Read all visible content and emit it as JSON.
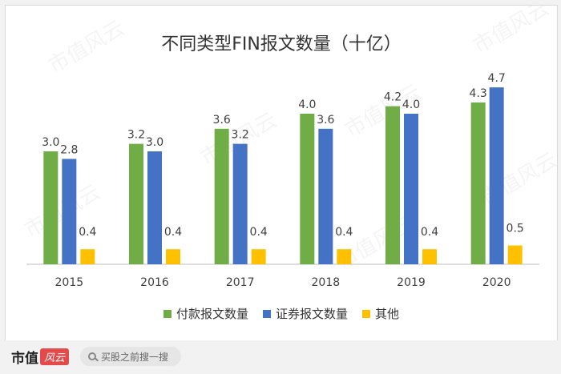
{
  "chart_data": {
    "type": "bar",
    "title": "不同类型FIN报文数量（十亿）",
    "categories": [
      "2015",
      "2016",
      "2017",
      "2018",
      "2019",
      "2020"
    ],
    "series": [
      {
        "name": "付款报文数量",
        "color": "#70ad47",
        "values": [
          3.0,
          3.2,
          3.6,
          4.0,
          4.2,
          4.3
        ]
      },
      {
        "name": "证券报文数量",
        "color": "#4472c4",
        "values": [
          2.8,
          3.0,
          3.2,
          3.6,
          4.0,
          4.7
        ]
      },
      {
        "name": "其他",
        "color": "#ffc000",
        "values": [
          0.4,
          0.4,
          0.4,
          0.4,
          0.4,
          0.5
        ]
      }
    ],
    "value_labels": [
      [
        "3.0",
        "3.2",
        "3.6",
        "4.0",
        "4.2",
        "4.3"
      ],
      [
        "2.8",
        "3.0",
        "3.2",
        "3.6",
        "4.0",
        "4.7"
      ],
      [
        "0.4",
        "0.4",
        "0.4",
        "0.4",
        "0.4",
        "0.5"
      ]
    ],
    "ylim": [
      0,
      5
    ],
    "grid": false,
    "legend_position": "bottom"
  },
  "watermark": "市值风云",
  "footer": {
    "logo_text": "市值",
    "logo_badge": "风云",
    "search_placeholder": "买股之前搜一搜"
  }
}
